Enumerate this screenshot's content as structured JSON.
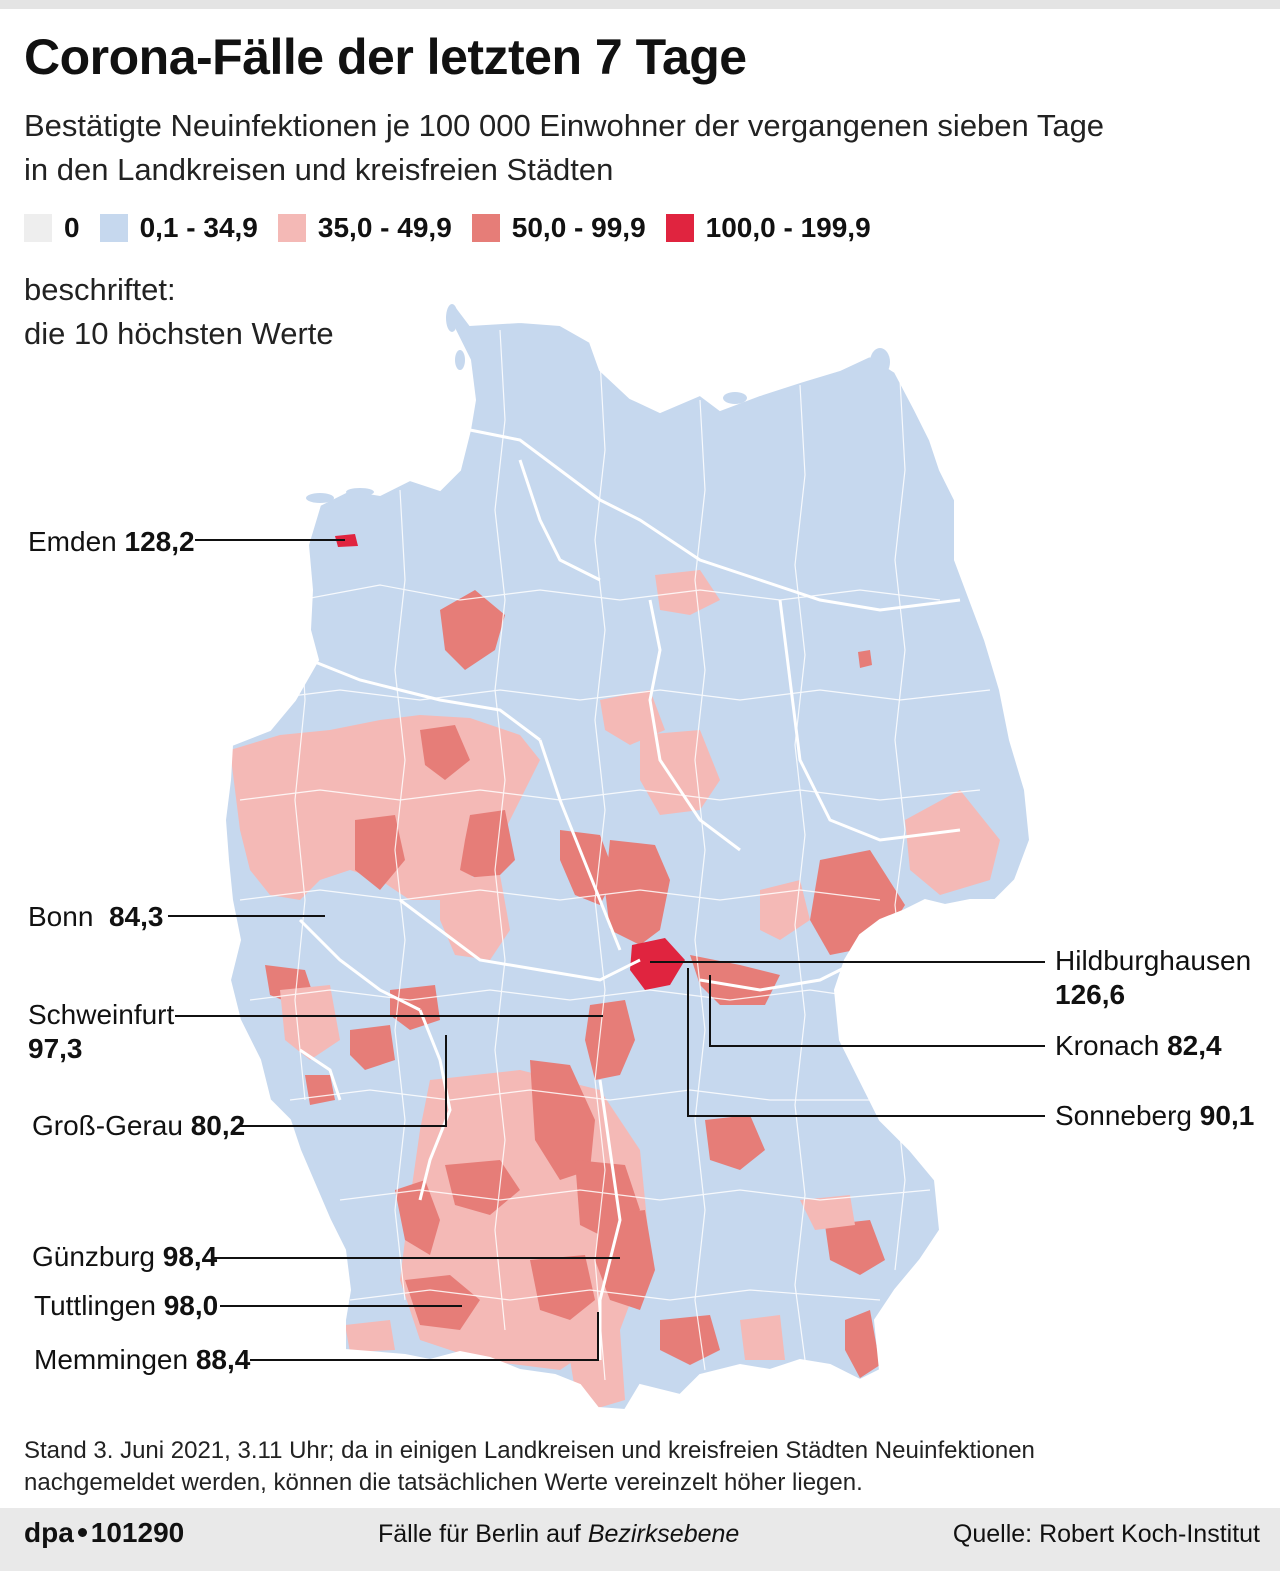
{
  "header": {
    "title": "Corona-Fälle der letzten 7 Tage",
    "subtitle_line1": "Bestätigte Neuinfektionen je 100 000 Einwohner der vergangenen sieben Tage",
    "subtitle_line2": "in den Landkreisen und kreisfreien Städten"
  },
  "legend": [
    {
      "label": "0",
      "color": "#eeeeee"
    },
    {
      "label": "0,1 - 34,9",
      "color": "#c6d8ee"
    },
    {
      "label": "35,0 - 49,9",
      "color": "#f4b9b6"
    },
    {
      "label": "50,0 - 99,9",
      "color": "#e67d78"
    },
    {
      "label": "100,0 - 199,9",
      "color": "#e0243f"
    }
  ],
  "note": {
    "line1": "beschriftet:",
    "line2": "die 10 höchsten Werte"
  },
  "callouts": [
    {
      "name": "Emden",
      "value": "128,2"
    },
    {
      "name": "Bonn",
      "value": "84,3"
    },
    {
      "name": "Schweinfurt",
      "value": "97,3"
    },
    {
      "name": "Groß-Gerau",
      "value": "80,2"
    },
    {
      "name": "Günzburg",
      "value": "98,4"
    },
    {
      "name": "Tuttlingen",
      "value": "98,0"
    },
    {
      "name": "Memmingen",
      "value": "88,4"
    },
    {
      "name": "Hildburghausen",
      "value": "126,6"
    },
    {
      "name": "Kronach",
      "value": "82,4"
    },
    {
      "name": "Sonneberg",
      "value": "90,1"
    }
  ],
  "source_note": {
    "line1": "Stand 3. Juni 2021, 3.11 Uhr; da in einigen Landkreisen und kreisfreien Städten Neuinfektionen",
    "line2": "nachgemeldet werden, können die tatsächlichen Werte vereinzelt höher liegen."
  },
  "footer": {
    "agency": "dpa",
    "graphic_id": "101290",
    "berlin_prefix": "Fälle für Berlin auf ",
    "berlin_italic": "Bezirksebene",
    "source": "Quelle: Robert Koch-Institut"
  }
}
